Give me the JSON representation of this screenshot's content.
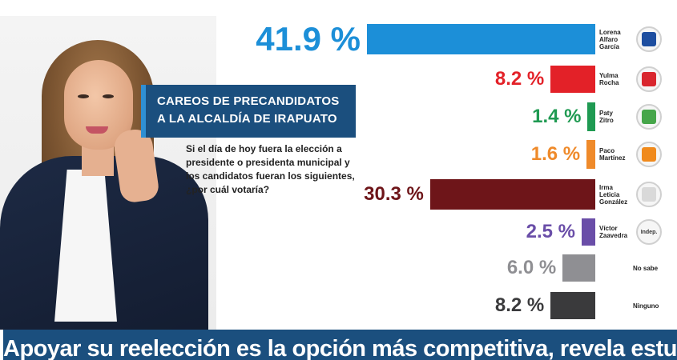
{
  "header": {
    "title_lines": [
      "CAREOS DE PRECANDIDATOS",
      "A LA ALCALDÍA DE IRAPUATO"
    ],
    "question": "Si el día de hoy fuera la elección a presidente o presidenta municipal y los candidatos fueran los siguientes, ¿por cuál votaría?"
  },
  "chart_data": {
    "type": "bar",
    "orientation": "horizontal",
    "categories": [
      "Lorena Alfaro García",
      "Yulma Rocha",
      "Paty Zitro",
      "Paco Martínez",
      "Irma Leticia González",
      "Víctor Zaavedra",
      "No sabe",
      "Ninguno"
    ],
    "values": [
      41.9,
      8.2,
      1.4,
      1.6,
      30.3,
      2.5,
      6.0,
      8.2
    ],
    "value_labels": [
      "41.9 %",
      "8.2 %",
      "1.4 %",
      "1.6 %",
      "30.3 %",
      "2.5 %",
      "6.0 %",
      "8.2 %"
    ],
    "candidate_name_lines": [
      [
        "Lorena",
        "Alfaro",
        "García"
      ],
      [
        "Yulma",
        "Rocha"
      ],
      [
        "Paty",
        "Zitro"
      ],
      [
        "Paco",
        "Martínez"
      ],
      [
        "Irma",
        "Leticia",
        "González"
      ],
      [
        "Víctor",
        "Zaavedra"
      ],
      [
        "No sabe"
      ],
      [
        "Ninguno"
      ]
    ],
    "bar_colors": [
      "#1c8fd8",
      "#e32128",
      "#1f9a52",
      "#ef8a2a",
      "#6e1519",
      "#6a4ea8",
      "#8f8f93",
      "#3a3a3c"
    ],
    "label_colors": [
      "#1c8fd8",
      "#e32128",
      "#1f9a52",
      "#ef8a2a",
      "#6e1519",
      "#6a4ea8",
      "#8f8f93",
      "#3a3a3c"
    ],
    "party_badges": [
      {
        "icon": "pan-logo-icon",
        "text": "",
        "color": "#1d4ea0"
      },
      {
        "icon": "pri-logo-icon",
        "text": "",
        "color": "#d9262e"
      },
      {
        "icon": "pvem-logo-icon",
        "text": "",
        "color": "#46a64a"
      },
      {
        "icon": "mc-logo-icon",
        "text": "",
        "color": "#f08a1c"
      },
      {
        "icon": "blank-logo-icon",
        "text": "",
        "color": "#d9d9d9"
      },
      {
        "icon": "indep-logo-icon",
        "text": "Indep.",
        "color": "#ffffff"
      },
      null,
      null
    ],
    "xlim": [
      0,
      41.9
    ],
    "grid": false,
    "legend": "none"
  },
  "footer": {
    "headline": "Apoyar su reelección es la opción más competitiva, revela estudio"
  }
}
